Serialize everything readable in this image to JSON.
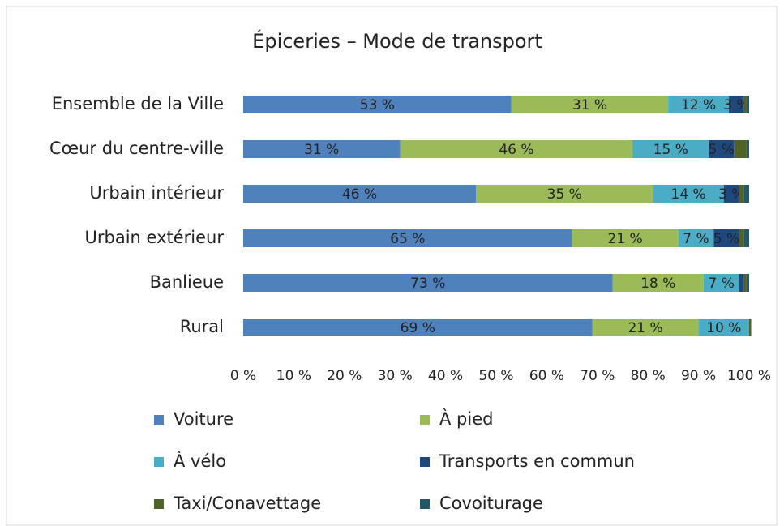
{
  "chart_data": {
    "type": "stacked-bar-horizontal",
    "title": "Épiceries – Mode de transport",
    "categories": [
      "Ensemble de la Ville",
      "Cœur du centre-ville",
      "Urbain intérieur",
      "Urbain extérieur",
      "Banlieue",
      "Rural"
    ],
    "series": [
      {
        "name": "Voiture",
        "color": "#4f81bd",
        "values": [
          53,
          31,
          46,
          65,
          73,
          69
        ],
        "value_labels": [
          "53 %",
          "31 %",
          "46 %",
          "65 %",
          "73 %",
          "69 %"
        ]
      },
      {
        "name": "À pied",
        "color": "#9bbb59",
        "values": [
          31,
          46,
          35,
          21,
          18,
          21
        ],
        "value_labels": [
          "31 %",
          "46 %",
          "35 %",
          "21 %",
          "18 %",
          "21 %"
        ]
      },
      {
        "name": "À vélo",
        "color": "#4bacc6",
        "values": [
          12,
          15,
          14,
          7,
          7,
          10
        ],
        "value_labels": [
          "12 %",
          "15 %",
          "14 %",
          "7 %",
          "7 %",
          "10 %"
        ]
      },
      {
        "name": "Transports en commun",
        "color": "#1f497d",
        "values": [
          3,
          5,
          3,
          5,
          1,
          0
        ],
        "value_labels": [
          "3 %",
          "5 %",
          "3 %",
          "5 %",
          null,
          null
        ]
      },
      {
        "name": "Taxi/Conavettage",
        "color": "#4f6228",
        "values": [
          0.5,
          2.5,
          1,
          1,
          0.5,
          0.4
        ]
      },
      {
        "name": "Covoiturage",
        "color": "#215967",
        "values": [
          0.5,
          0.5,
          1,
          1,
          0.5,
          0
        ]
      }
    ],
    "xlim": [
      0,
      100
    ],
    "xticks": [
      {
        "value": 0,
        "label": "0 %"
      },
      {
        "value": 10,
        "label": "10 %"
      },
      {
        "value": 20,
        "label": "20 %"
      },
      {
        "value": 30,
        "label": "30 %"
      },
      {
        "value": 40,
        "label": "40 %"
      },
      {
        "value": 50,
        "label": "50 %"
      },
      {
        "value": 60,
        "label": "60 %"
      },
      {
        "value": 70,
        "label": "70 %"
      },
      {
        "value": 80,
        "label": "80 %"
      },
      {
        "value": 90,
        "label": "90 %"
      },
      {
        "value": 100,
        "label": "100 %"
      }
    ],
    "legend": "bottom"
  }
}
